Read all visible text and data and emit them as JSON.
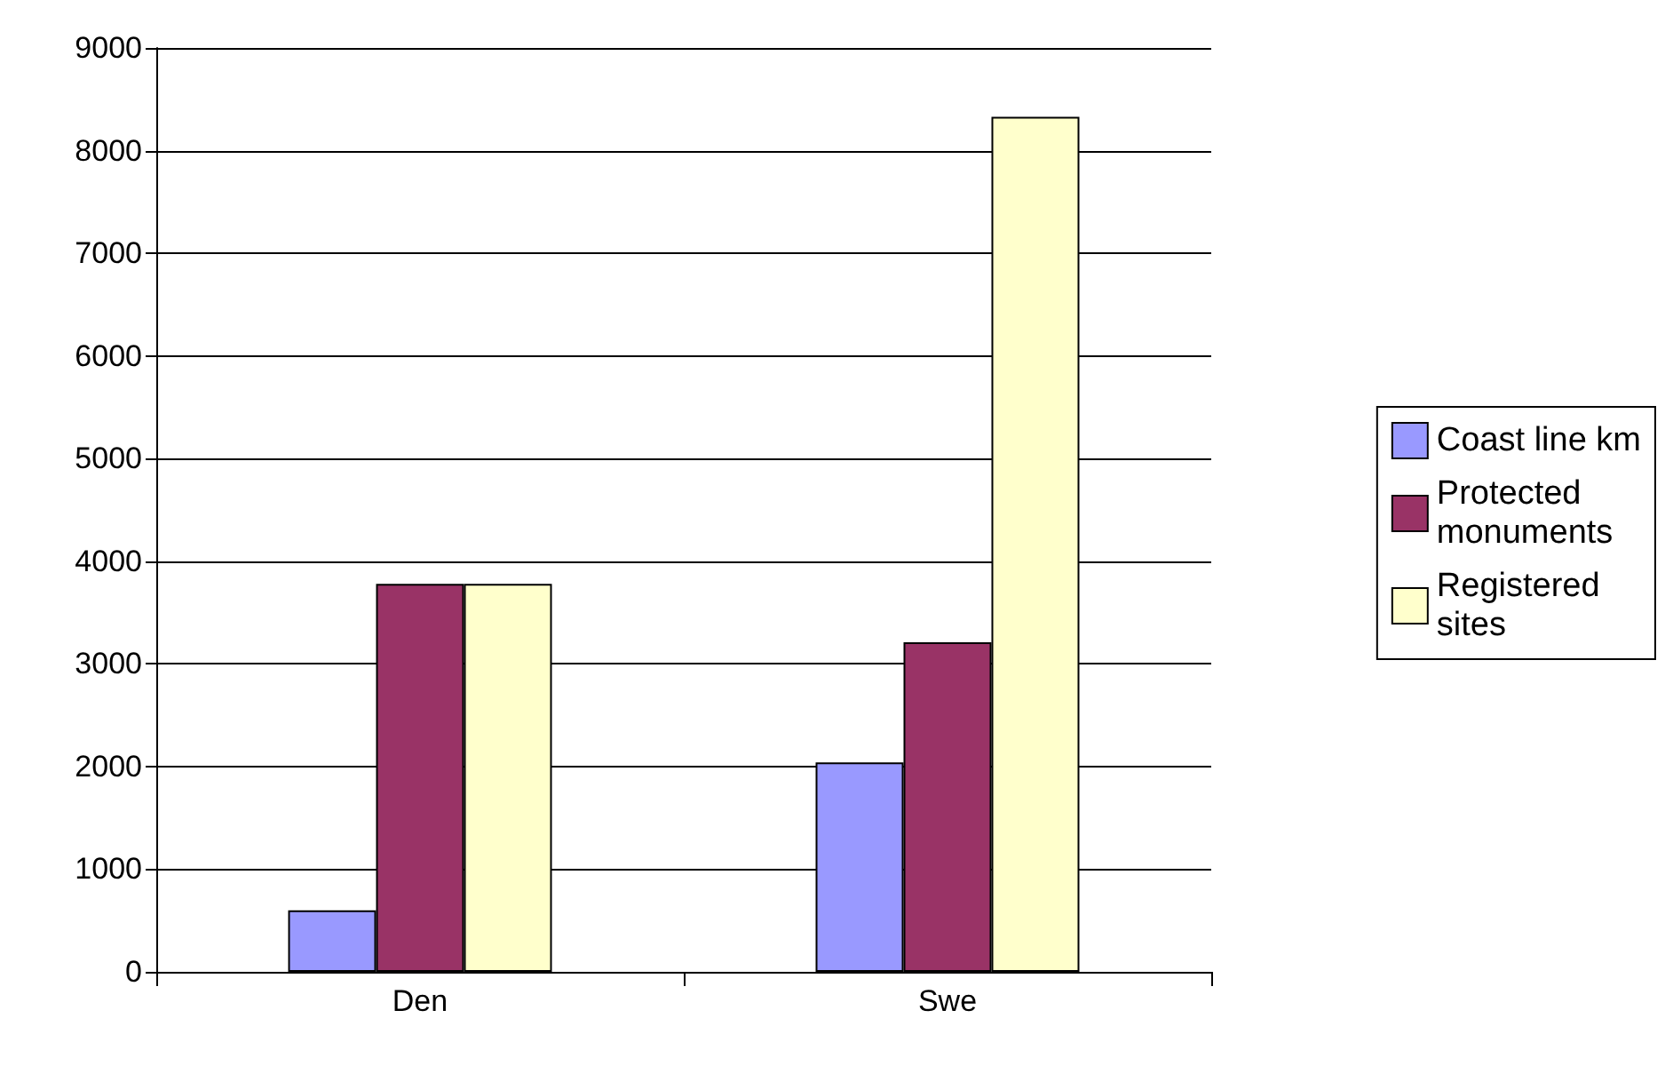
{
  "chart_data": {
    "type": "bar",
    "categories": [
      "Den",
      "Swe"
    ],
    "series": [
      {
        "name": "Coast line km",
        "color": "#9999ff",
        "values": [
          600,
          2040
        ]
      },
      {
        "name": "Protected monuments",
        "color": "#993366",
        "values": [
          3780,
          3210
        ]
      },
      {
        "name": "Registered sites",
        "color": "#ffffcc",
        "values": [
          3780,
          8330
        ]
      }
    ],
    "ylim": [
      0,
      9000
    ],
    "yticks": [
      0,
      1000,
      2000,
      3000,
      4000,
      5000,
      6000,
      7000,
      8000,
      9000
    ],
    "grid": "y",
    "legend": "right"
  }
}
